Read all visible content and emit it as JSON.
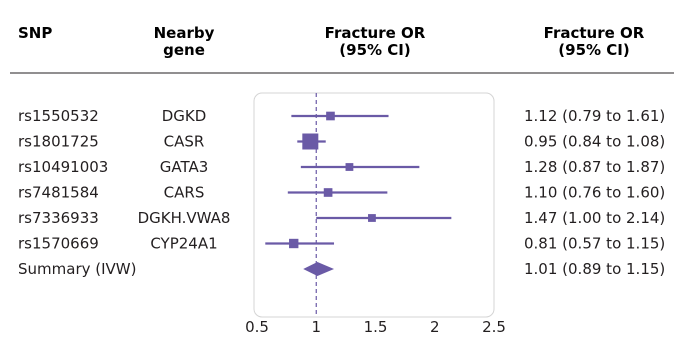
{
  "header": {
    "snp": "SNP",
    "gene_line1": "Nearby",
    "gene_line2": "gene",
    "plot_line1": "Fracture OR",
    "plot_line2": "(95% CI)",
    "ci_line1": "Fracture OR",
    "ci_line2": "(95% CI)"
  },
  "colors": {
    "marker": "#6a5aa6",
    "ref_line": "#6a5aa6",
    "rule": "#231f20",
    "panel_border": "#d4d4d4",
    "text": "#231f20"
  },
  "chart_data": {
    "type": "forest",
    "x_scale": "linear",
    "xlim": [
      0.5,
      2.5
    ],
    "x_ticks": [
      "0.5",
      "1",
      "1.5",
      "2",
      "2.5"
    ],
    "x_tick_values": [
      0.5,
      1,
      1.5,
      2,
      2.5
    ],
    "reference_line": 1,
    "reference_style": "dashed",
    "rows": [
      {
        "snp": "rs1550532",
        "gene": "DGKD",
        "or": 1.12,
        "lower": 0.79,
        "upper": 1.61,
        "label": "1.12 (0.79 to 1.61)",
        "weight": 0.15
      },
      {
        "snp": "rs1801725",
        "gene": "CASR",
        "or": 0.95,
        "lower": 0.84,
        "upper": 1.08,
        "label": "0.95 (0.84 to 1.08)",
        "weight": 1.0
      },
      {
        "snp": "rs10491003",
        "gene": "GATA3",
        "or": 1.28,
        "lower": 0.87,
        "upper": 1.87,
        "label": "1.28 (0.87 to 1.87)",
        "weight": 0.1
      },
      {
        "snp": "rs7481584",
        "gene": "CARS",
        "or": 1.1,
        "lower": 0.76,
        "upper": 1.6,
        "label": "1.10 (0.76 to 1.60)",
        "weight": 0.15
      },
      {
        "snp": "rs7336933",
        "gene": "DGKH.VWA8",
        "or": 1.47,
        "lower": 1.0,
        "upper": 2.14,
        "label": "1.47 (1.00 to 2.14)",
        "weight": 0.1
      },
      {
        "snp": "rs1570669",
        "gene": "CYP24A1",
        "or": 0.81,
        "lower": 0.57,
        "upper": 1.15,
        "label": "0.81 (0.57 to 1.15)",
        "weight": 0.2
      }
    ],
    "summary": {
      "snp": "Summary (IVW)",
      "gene": "",
      "or": 1.01,
      "lower": 0.89,
      "upper": 1.15,
      "label": "1.01 (0.89 to 1.15)"
    }
  }
}
